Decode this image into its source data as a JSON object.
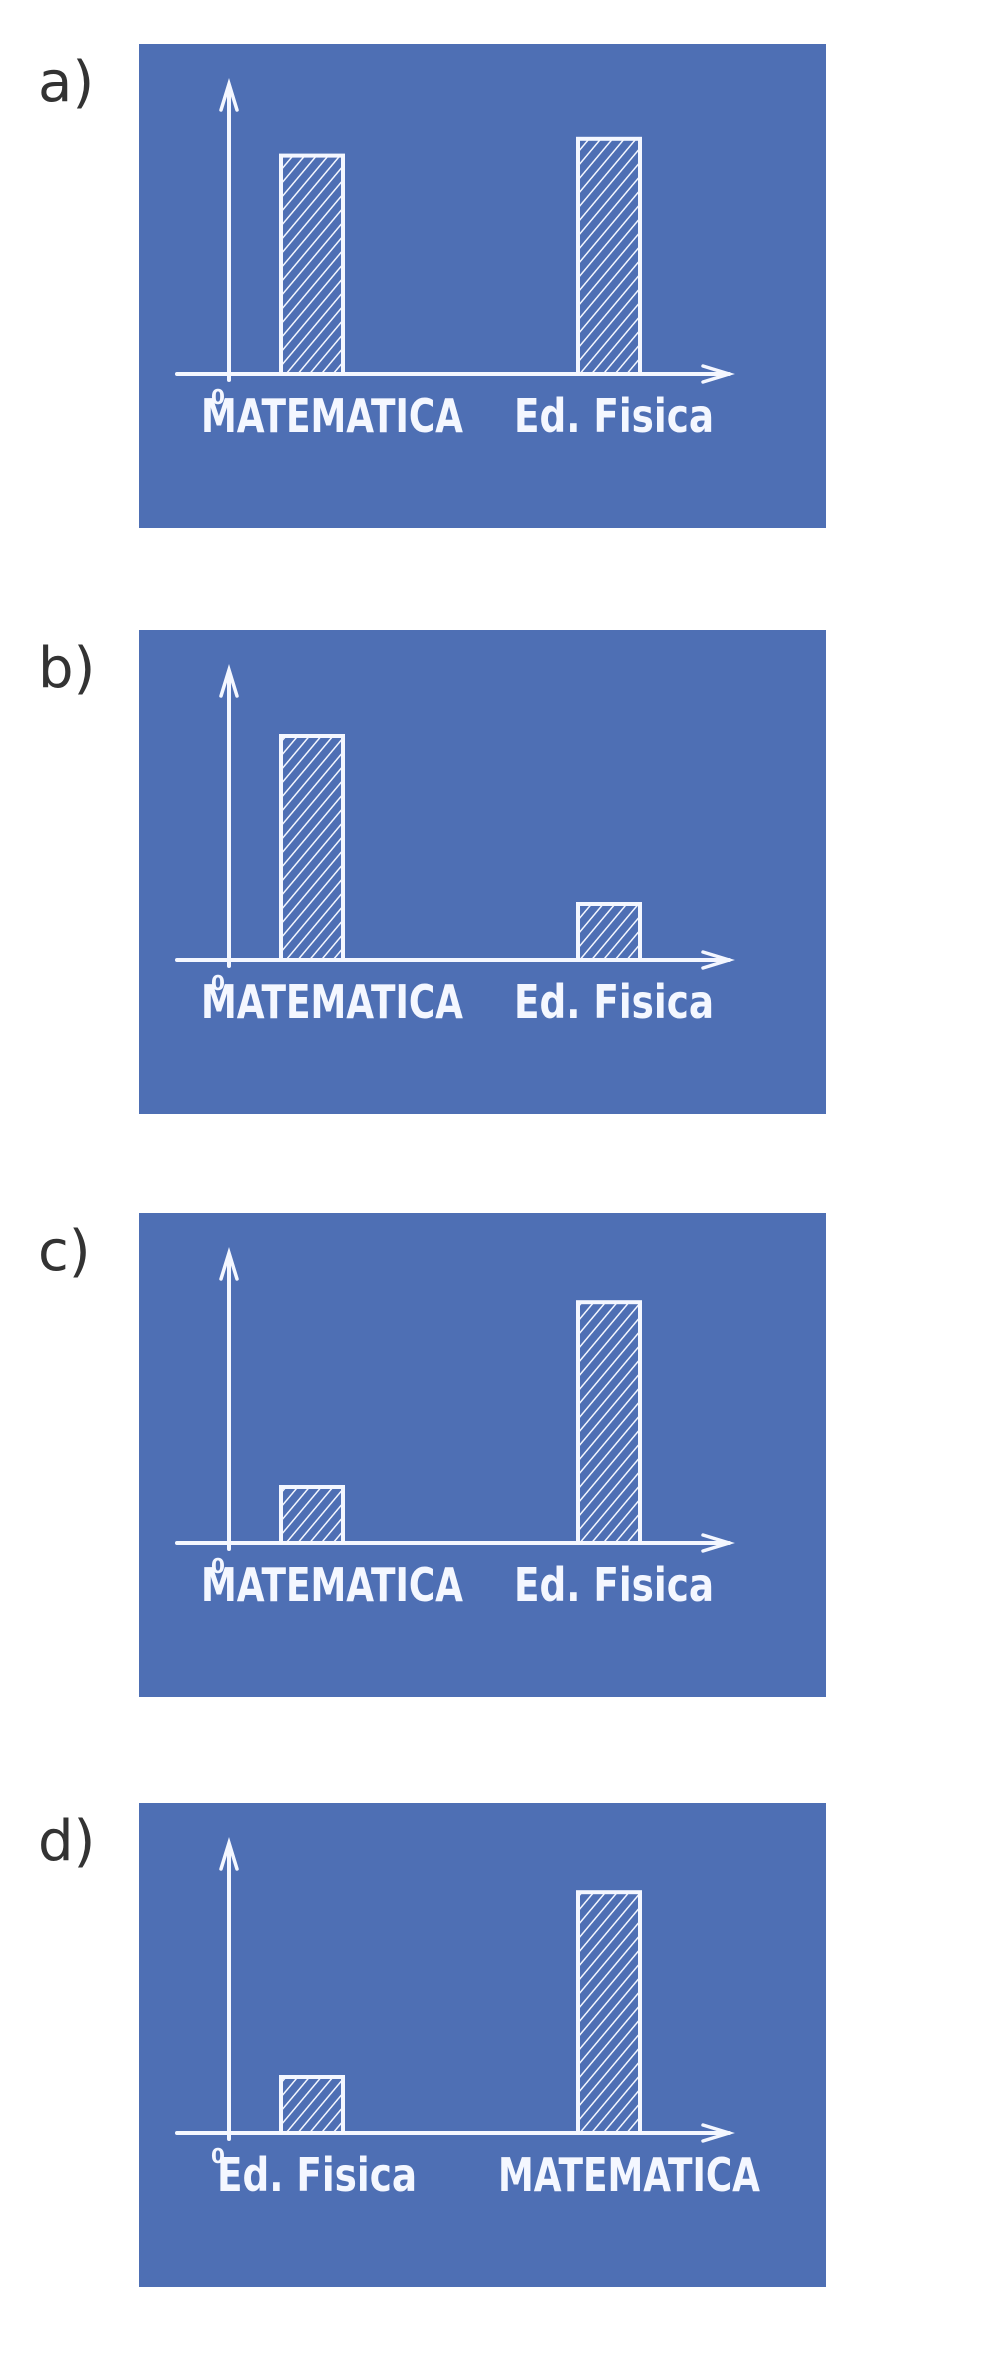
{
  "colors": {
    "panel": "#4e6fb4",
    "chalk": "#f4f7ff",
    "label": "#333333"
  },
  "options": [
    {
      "label": "a)",
      "chart_data": {
        "type": "bar",
        "categories": [
          "MATEMATICA",
          "Ed. Fisica"
        ],
        "values": [
          0.78,
          0.84
        ],
        "ylim": [
          0,
          1
        ],
        "origin": "0"
      }
    },
    {
      "label": "b)",
      "chart_data": {
        "type": "bar",
        "categories": [
          "MATEMATICA",
          "Ed. Fisica"
        ],
        "values": [
          0.8,
          0.2
        ],
        "ylim": [
          0,
          1
        ],
        "origin": "0"
      }
    },
    {
      "label": "c)",
      "chart_data": {
        "type": "bar",
        "categories": [
          "MATEMATICA",
          "Ed. Fisica"
        ],
        "values": [
          0.2,
          0.86
        ],
        "ylim": [
          0,
          1
        ],
        "origin": "0"
      }
    },
    {
      "label": "d)",
      "chart_data": {
        "type": "bar",
        "categories": [
          "Ed. Fisica",
          "MATEMATICA"
        ],
        "values": [
          0.2,
          0.86
        ],
        "ylim": [
          0,
          1
        ],
        "origin": "0"
      }
    }
  ]
}
